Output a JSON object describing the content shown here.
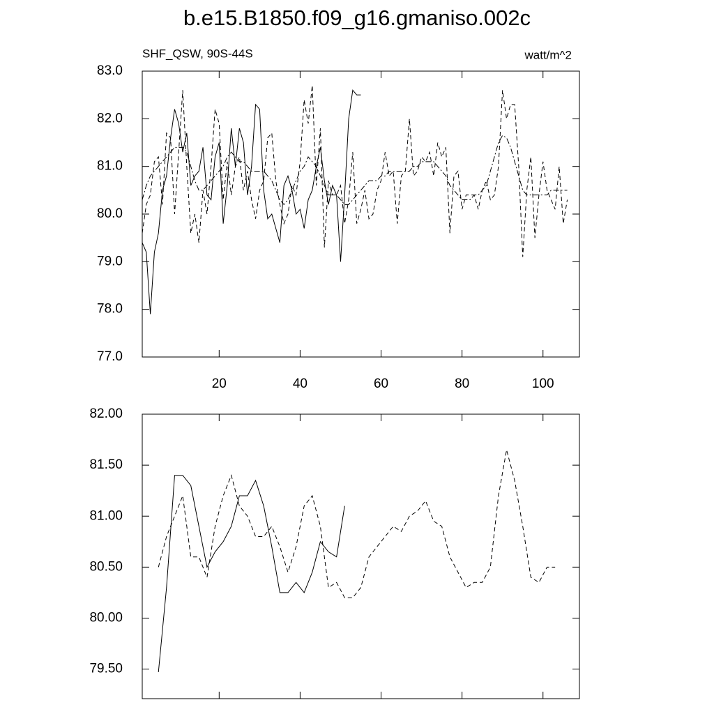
{
  "chart_data": [
    {
      "type": "line",
      "title": "b.e15.B1850.f09_g16.gmaniso.002c",
      "subtitle_left": "SHF_QSW, 90S-44S",
      "subtitle_right": "watt/m^2",
      "x": [
        1,
        2,
        3,
        4,
        5,
        6,
        7,
        8,
        9,
        10,
        11,
        12,
        13,
        14,
        15,
        16,
        17,
        18,
        19,
        20,
        21,
        22,
        23,
        24,
        25,
        26,
        27,
        28,
        29,
        30,
        31,
        32,
        33,
        34,
        35,
        36,
        37,
        38,
        39,
        40,
        41,
        42,
        43,
        44,
        45,
        46,
        47,
        48,
        49,
        50,
        51,
        52,
        53,
        54,
        55,
        56,
        57,
        58,
        59,
        60,
        61,
        62,
        63,
        64,
        65,
        66,
        67,
        68,
        69,
        70,
        71,
        72,
        73,
        74,
        75,
        76,
        77,
        78,
        79,
        80,
        81,
        82,
        83,
        84,
        85,
        86,
        87,
        88,
        89,
        90,
        91,
        92,
        93,
        94,
        95,
        96,
        97,
        98,
        99,
        100,
        101,
        102,
        103,
        104,
        105,
        106
      ],
      "xlim": [
        1,
        109
      ],
      "xticks": [
        20,
        40,
        60,
        80,
        100
      ],
      "show_xtick_labels": true,
      "ylim": [
        77,
        83
      ],
      "yticks": [
        {
          "value": 77,
          "label": "77.0"
        },
        {
          "value": 78,
          "label": "78.0"
        },
        {
          "value": 79,
          "label": "79.0"
        },
        {
          "value": 80,
          "label": "80.0"
        },
        {
          "value": 81,
          "label": "81.0"
        },
        {
          "value": 82,
          "label": "82.0"
        },
        {
          "value": 83,
          "label": "83.0"
        }
      ],
      "series": [
        {
          "color": "#000000",
          "dash": "solid",
          "values": [
            79.4,
            79.2,
            77.9,
            79.2,
            79.6,
            80.5,
            80.8,
            81.6,
            82.2,
            81.9,
            81.3,
            81.7,
            80.6,
            80.8,
            80.9,
            81.4,
            80.4,
            80.3,
            81.2,
            81.5,
            79.8,
            80.6,
            81.8,
            81.0,
            81.8,
            81.5,
            80.4,
            81.0,
            82.3,
            82.2,
            80.5,
            79.9,
            80.0,
            79.7,
            79.4,
            80.6,
            80.8,
            80.5,
            80.0,
            80.1,
            79.7,
            80.3,
            80.5,
            81.0,
            81.4,
            80.7,
            80.2,
            80.6,
            80.4,
            79.0,
            80.4,
            82.0,
            82.6,
            82.5,
            82.5,
            null,
            null,
            null,
            null,
            null,
            null,
            null,
            null,
            null,
            null,
            null,
            null,
            null,
            null,
            null,
            null,
            null,
            null,
            null,
            null,
            null,
            null,
            null,
            null,
            null,
            null,
            null,
            null,
            null,
            null,
            null,
            null,
            null,
            null,
            null,
            null,
            null,
            null,
            null,
            null,
            null,
            null,
            null,
            null,
            null,
            null,
            null,
            null,
            null,
            null,
            null
          ]
        },
        {
          "color": "#000000",
          "dash": "dashed",
          "values": [
            79.6,
            80.2,
            80.4,
            81.1,
            81.2,
            80.2,
            81.7,
            81.6,
            80.0,
            81.3,
            82.6,
            81.0,
            79.6,
            80.0,
            79.4,
            80.5,
            80.0,
            81.0,
            82.2,
            81.9,
            80.3,
            81.1,
            80.4,
            81.0,
            81.2,
            80.5,
            80.9,
            80.3,
            79.9,
            80.5,
            80.7,
            81.6,
            81.7,
            80.7,
            80.2,
            79.8,
            80.0,
            80.6,
            80.4,
            81.1,
            82.4,
            81.9,
            82.7,
            80.6,
            81.8,
            79.3,
            80.7,
            80.4,
            80.4,
            80.6,
            79.8,
            80.3,
            81.3,
            79.8,
            80.1,
            80.5,
            79.9,
            80.0,
            80.5,
            80.7,
            81.3,
            80.8,
            80.9,
            79.8,
            80.8,
            80.9,
            82.0,
            80.8,
            80.9,
            81.2,
            81.1,
            81.3,
            80.8,
            81.5,
            81.2,
            81.4,
            79.6,
            80.8,
            80.9,
            80.1,
            80.4,
            80.4,
            80.4,
            80.1,
            80.5,
            80.7,
            80.3,
            80.4,
            81.0,
            82.6,
            82.0,
            82.3,
            82.3,
            81.0,
            79.1,
            80.5,
            81.2,
            79.5,
            80.4,
            81.1,
            80.5,
            80.3,
            80.1,
            81.0,
            79.8,
            80.3
          ]
        },
        {
          "color": "#000000",
          "dash": "dashdot",
          "values": [
            80.3,
            80.6,
            80.8,
            80.9,
            81.0,
            81.1,
            81.2,
            81.3,
            81.4,
            81.4,
            81.4,
            81.3,
            81.0,
            80.7,
            80.5,
            80.5,
            80.6,
            80.7,
            80.8,
            80.9,
            81.0,
            81.2,
            81.3,
            81.2,
            81.1,
            81.1,
            81.0,
            80.9,
            80.9,
            80.9,
            80.9,
            80.8,
            80.7,
            80.5,
            80.3,
            80.2,
            80.3,
            80.5,
            80.7,
            80.9,
            81.0,
            81.2,
            81.1,
            81.0,
            80.8,
            80.6,
            80.4,
            80.4,
            80.4,
            80.3,
            80.2,
            80.2,
            80.3,
            80.4,
            80.5,
            80.6,
            80.7,
            80.7,
            80.7,
            80.8,
            80.8,
            80.9,
            80.9,
            80.9,
            80.9,
            80.9,
            80.9,
            81.0,
            81.0,
            81.1,
            81.1,
            81.1,
            81.1,
            81.0,
            80.9,
            80.8,
            80.6,
            80.5,
            80.4,
            80.3,
            80.3,
            80.3,
            80.4,
            80.4,
            80.5,
            80.6,
            80.9,
            81.2,
            81.5,
            81.65,
            81.6,
            81.4,
            81.1,
            80.8,
            80.5,
            80.4,
            80.4,
            80.4,
            80.4,
            80.4,
            80.4,
            80.5,
            80.5,
            80.5,
            80.5,
            80.5
          ]
        }
      ]
    },
    {
      "type": "line",
      "x": [
        5,
        7,
        9,
        11,
        13,
        15,
        17,
        19,
        21,
        23,
        25,
        27,
        29,
        31,
        33,
        35,
        37,
        39,
        41,
        43,
        45,
        47,
        49,
        51,
        53,
        55,
        57,
        59,
        61,
        63,
        65,
        67,
        69,
        71,
        73,
        75,
        77,
        79,
        81,
        83,
        85,
        87,
        89,
        91,
        93,
        95,
        97,
        99,
        101,
        103
      ],
      "xlim": [
        1,
        109
      ],
      "xticks": [
        20,
        40,
        60,
        80,
        100
      ],
      "show_xtick_labels": false,
      "ylim": [
        79.21,
        82
      ],
      "yticks": [
        {
          "value": 79.5,
          "label": "79.50"
        },
        {
          "value": 80,
          "label": "80.00"
        },
        {
          "value": 80.5,
          "label": "80.50"
        },
        {
          "value": 81,
          "label": "81.00"
        },
        {
          "value": 81.5,
          "label": "81.50"
        },
        {
          "value": 82,
          "label": "82.00"
        }
      ],
      "series": [
        {
          "color": "#000000",
          "dash": "solid",
          "values": [
            79.47,
            80.3,
            81.4,
            81.4,
            81.3,
            80.9,
            80.5,
            80.65,
            80.75,
            80.9,
            81.2,
            81.2,
            81.35,
            81.1,
            80.7,
            80.25,
            80.25,
            80.35,
            80.25,
            80.45,
            80.75,
            80.65,
            80.6,
            81.1,
            null,
            null,
            null,
            null,
            null,
            null,
            null,
            null,
            null,
            null,
            null,
            null,
            null,
            null,
            null,
            null,
            null,
            null,
            null,
            null,
            null,
            null,
            null,
            null,
            null,
            null
          ]
        },
        {
          "color": "#000000",
          "dash": "dashed",
          "values": [
            80.5,
            80.8,
            81.0,
            81.2,
            80.6,
            80.6,
            80.4,
            80.9,
            81.2,
            81.4,
            81.1,
            81.0,
            80.8,
            80.8,
            80.9,
            80.7,
            80.45,
            80.7,
            81.1,
            81.2,
            80.9,
            80.3,
            80.35,
            80.2,
            80.2,
            80.3,
            80.6,
            80.7,
            80.8,
            80.9,
            80.85,
            81.0,
            81.05,
            81.15,
            80.95,
            80.9,
            80.6,
            80.45,
            80.3,
            80.35,
            80.35,
            80.5,
            81.2,
            81.65,
            81.35,
            80.9,
            80.4,
            80.35,
            80.5,
            80.5
          ]
        }
      ]
    }
  ]
}
